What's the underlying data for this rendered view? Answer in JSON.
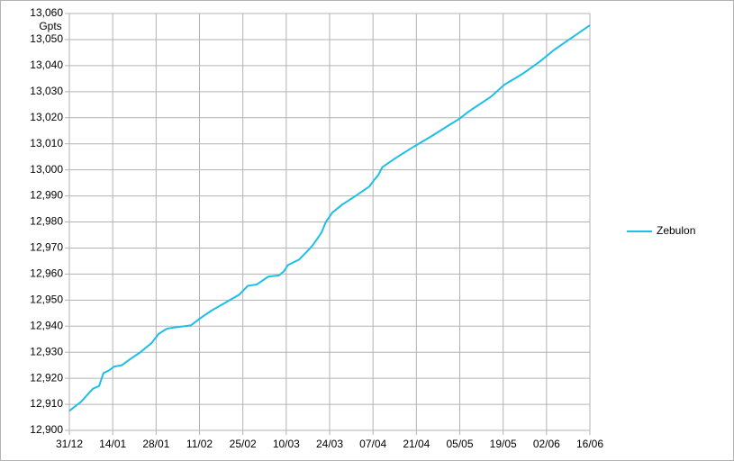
{
  "chart_data": {
    "type": "line",
    "y_label": "Gpts",
    "xticks": [
      {
        "value": 0,
        "label": "31/12"
      },
      {
        "value": 14,
        "label": "14/01"
      },
      {
        "value": 28,
        "label": "28/01"
      },
      {
        "value": 42,
        "label": "11/02"
      },
      {
        "value": 56,
        "label": "25/02"
      },
      {
        "value": 70,
        "label": "10/03"
      },
      {
        "value": 84,
        "label": "24/03"
      },
      {
        "value": 98,
        "label": "07/04"
      },
      {
        "value": 112,
        "label": "21/04"
      },
      {
        "value": 126,
        "label": "05/05"
      },
      {
        "value": 140,
        "label": "19/05"
      },
      {
        "value": 154,
        "label": "02/06"
      },
      {
        "value": 168,
        "label": "16/06"
      }
    ],
    "xlim": [
      0,
      168
    ],
    "ylim": [
      12900,
      13060
    ],
    "yticks": [
      {
        "value": 12900,
        "label": "12,900"
      },
      {
        "value": 12910,
        "label": "12,910"
      },
      {
        "value": 12920,
        "label": "12,920"
      },
      {
        "value": 12930,
        "label": "12,930"
      },
      {
        "value": 12940,
        "label": "12,940"
      },
      {
        "value": 12950,
        "label": "12,950"
      },
      {
        "value": 12960,
        "label": "12,960"
      },
      {
        "value": 12970,
        "label": "12,970"
      },
      {
        "value": 12980,
        "label": "12,980"
      },
      {
        "value": 12990,
        "label": "12,990"
      },
      {
        "value": 13000,
        "label": "13,000"
      },
      {
        "value": 13010,
        "label": "13,010"
      },
      {
        "value": 13020,
        "label": "13,020"
      },
      {
        "value": 13030,
        "label": "13,030"
      },
      {
        "value": 13040,
        "label": "13,040"
      },
      {
        "value": 13050,
        "label": "13,050"
      },
      {
        "value": 13060,
        "label": "13,060"
      }
    ],
    "grid": true,
    "legend": "right",
    "series": [
      {
        "name": "Zebulon",
        "color": "#1cbfe8",
        "x": [
          0,
          3.8,
          7.6,
          9.6,
          11,
          12.8,
          14.5,
          16.9,
          19.8,
          22.7,
          26.5,
          28.8,
          31.4,
          33.7,
          37.2,
          39.2,
          42.2,
          45.9,
          50.3,
          54.7,
          57.6,
          60.5,
          64.2,
          67.7,
          69.2,
          70.6,
          74.1,
          77,
          78.5,
          80,
          81.4,
          82.8,
          84.9,
          88.1,
          92.4,
          96.8,
          98.3,
          99.7,
          101,
          105.5,
          111.3,
          117,
          123,
          125.9,
          128.8,
          136,
          140.4,
          146.2,
          152,
          156.4,
          160.8,
          168
        ],
        "values": [
          12907.5,
          12911,
          12916,
          12917,
          12922,
          12923,
          12924.5,
          12925,
          12927.5,
          12929.8,
          12933.5,
          12937,
          12939,
          12939.5,
          12940,
          12940.3,
          12943,
          12946,
          12949,
          12952,
          12955.5,
          12956,
          12959,
          12959.5,
          12961,
          12963.5,
          12965.5,
          12969,
          12971,
          12973.5,
          12976,
          12980,
          12983.6,
          12986.7,
          12990,
          12993.6,
          12996,
          12998,
          13001,
          13004.7,
          13009,
          13013,
          13017.5,
          13019.6,
          13022.3,
          13028,
          13032.7,
          13036.8,
          13041.7,
          13046,
          13049.6,
          13055.5
        ]
      }
    ]
  }
}
